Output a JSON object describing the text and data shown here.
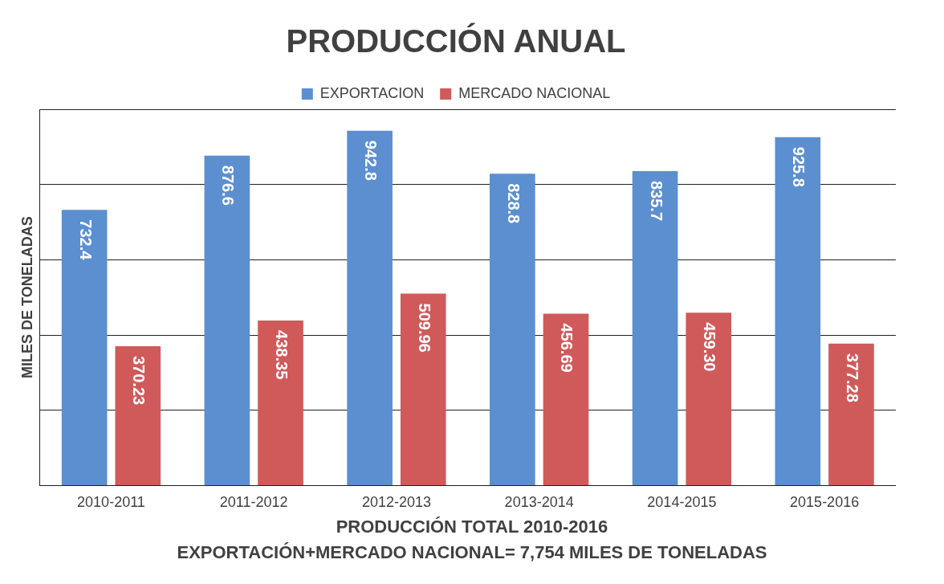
{
  "chart_data": {
    "type": "bar",
    "title": "PRODUCCIÓN ANUAL",
    "ylabel": "MILES DE TONELADAS",
    "categories": [
      "2010-2011",
      "2011-2012",
      "2012-2013",
      "2013-2014",
      "2014-2015",
      "2015-2016"
    ],
    "series": [
      {
        "name": "EXPORTACION",
        "color": "#5b8fd0",
        "values": [
          732.4,
          876.6,
          942.8,
          828.8,
          835.7,
          925.8
        ],
        "value_labels": [
          "732.4",
          "876.6",
          "942.8",
          "828.8",
          "835.7",
          "925.8"
        ]
      },
      {
        "name": "MERCADO NACIONAL",
        "color": "#d05a5a",
        "values": [
          370.23,
          438.35,
          509.96,
          456.69,
          459.3,
          377.28
        ],
        "value_labels": [
          "370.23",
          "438.35",
          "509.96",
          "456.69",
          "459.30",
          "377.28"
        ]
      }
    ],
    "ylim": [
      0,
      1000
    ],
    "yticks": [
      {
        "value": 0,
        "label": null
      },
      {
        "value": 200,
        "label": null
      },
      {
        "value": 400,
        "label": null
      },
      {
        "value": 600,
        "label": null
      },
      {
        "value": 800,
        "label": null
      },
      {
        "value": 1000,
        "label": null
      }
    ],
    "grid": "y",
    "legend": "top",
    "tick_labels": "x",
    "annotations": [
      "PRODUCCIÓN TOTAL 2010-2016",
      "EXPORTACIÓN+MERCADO NACIONAL= 7,754 MILES DE TONELADAS"
    ]
  }
}
